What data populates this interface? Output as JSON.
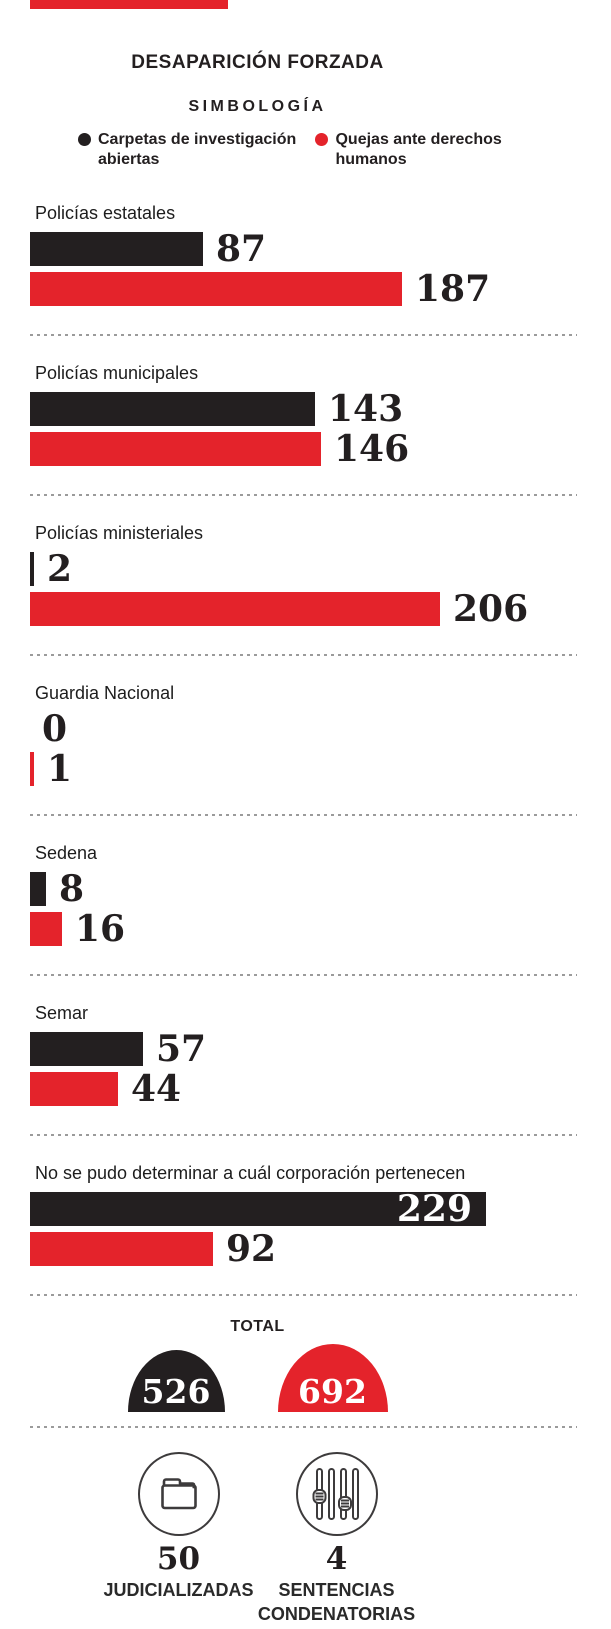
{
  "header": {
    "title": "DESAPARICIÓN FORZADA",
    "legend_title": "SIMBOLOGÍA"
  },
  "colors": {
    "black_series": "#231f20",
    "red_series": "#e4232b",
    "divider": "#9b9b9b"
  },
  "chart_data": {
    "type": "bar",
    "orientation": "horizontal",
    "title": "DESAPARICIÓN FORZADA",
    "legend_position": "top",
    "grid": false,
    "xlim": [
      0,
      240
    ],
    "categories": [
      "Policías estatales",
      "Policías municipales",
      "Policías ministeriales",
      "Guardia Nacional",
      "Sedena",
      "Semar",
      "No se pudo determinar a cuál corporación pertenecen"
    ],
    "series": [
      {
        "name": "Carpetas de investigación abiertas",
        "color": "#231f20",
        "values": [
          87,
          143,
          2,
          0,
          8,
          57,
          229
        ]
      },
      {
        "name": "Quejas ante derechos humanos",
        "color": "#e4232b",
        "values": [
          187,
          146,
          206,
          1,
          16,
          44,
          92
        ]
      }
    ]
  },
  "totals": {
    "label": "TOTAL",
    "items": [
      {
        "name": "Carpetas de investigación abiertas",
        "value": "526",
        "color": "#231f20"
      },
      {
        "name": "Quejas ante derechos humanos",
        "value": "692",
        "color": "#e4232b"
      }
    ]
  },
  "footer": {
    "items": [
      {
        "icon": "folder-icon",
        "value": "50",
        "label": "JUDICIALIZADAS"
      },
      {
        "icon": "jail-bars-icon",
        "value": "4",
        "label": "SENTENCIAS CONDENATORIAS"
      }
    ]
  }
}
